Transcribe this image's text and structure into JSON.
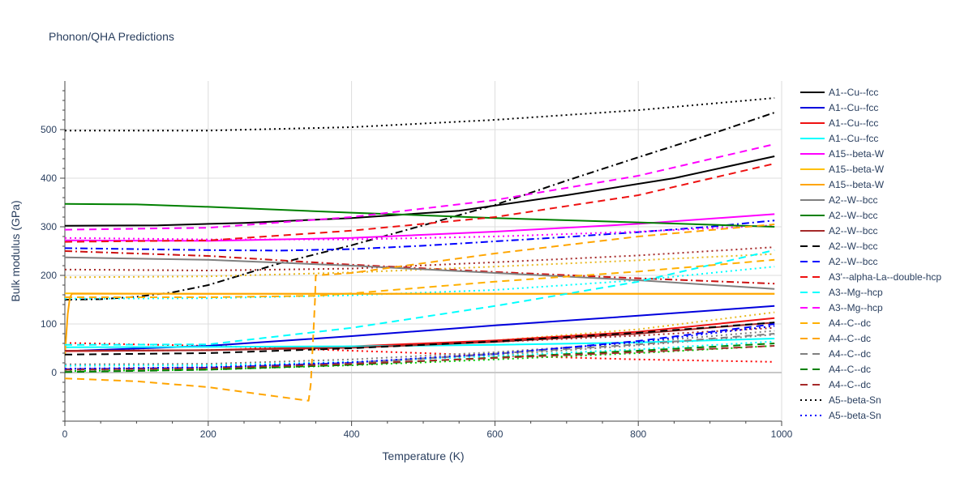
{
  "chart_data": {
    "type": "line",
    "title": "Phonon/QHA Predictions",
    "xlabel": "Temperature (K)",
    "ylabel": "Bulk modulus (GPa)",
    "xlim": [
      0,
      1000
    ],
    "ylim": [
      -100,
      600
    ],
    "x_ticks": [
      0,
      200,
      400,
      600,
      800,
      1000
    ],
    "y_ticks": [
      0,
      100,
      200,
      300,
      400,
      500
    ],
    "grid": true,
    "legend_position": "right",
    "series": [
      {
        "name": "A1--Cu--fcc",
        "color": "#000000",
        "dash": "solid",
        "x": [
          0,
          130,
          250,
          400,
          550,
          700,
          850,
          990
        ],
        "y": [
          302,
          303,
          308,
          318,
          333,
          365,
          400,
          445
        ]
      },
      {
        "name": "A1--Cu--fcc",
        "color": "#0000dd",
        "dash": "solid",
        "x": [
          0,
          200,
          400,
          600,
          800,
          990
        ],
        "y": [
          44,
          55,
          75,
          97,
          117,
          137
        ]
      },
      {
        "name": "A1--Cu--fcc",
        "color": "#ee1111",
        "dash": "solid",
        "x": [
          0,
          200,
          400,
          600,
          800,
          990
        ],
        "y": [
          44,
          46,
          54,
          66,
          84,
          112
        ]
      },
      {
        "name": "A1--Cu--fcc",
        "color": "#00ffff",
        "dash": "solid",
        "x": [
          0,
          200,
          400,
          600,
          800,
          990
        ],
        "y": [
          52,
          53,
          54,
          57,
          62,
          70
        ]
      },
      {
        "name": "A15--beta-W",
        "color": "#ff00ff",
        "dash": "solid",
        "x": [
          0,
          200,
          400,
          600,
          800,
          990
        ],
        "y": [
          272,
          271,
          277,
          290,
          306,
          326
        ]
      },
      {
        "name": "A15--beta-W",
        "color": "#ffc000",
        "dash": "solid",
        "x": [
          0,
          200,
          400,
          600,
          800,
          990
        ],
        "y": [
          163,
          162,
          162,
          162,
          162,
          162
        ]
      },
      {
        "name": "A15--beta-W",
        "color": "#ffa500",
        "dash": "solid",
        "x": [
          0,
          4,
          7,
          10,
          200,
          400,
          600,
          800,
          990
        ],
        "y": [
          35,
          120,
          155,
          162,
          162,
          162,
          162,
          162,
          162
        ]
      },
      {
        "name": "A2--W--bcc",
        "color": "#808080",
        "dash": "solid",
        "x": [
          0,
          200,
          400,
          600,
          800,
          990
        ],
        "y": [
          237,
          232,
          220,
          205,
          190,
          172
        ]
      },
      {
        "name": "A2--W--bcc",
        "color": "#008000",
        "dash": "solid",
        "x": [
          0,
          100,
          200,
          400,
          600,
          800,
          990
        ],
        "y": [
          347,
          346,
          341,
          329,
          318,
          309,
          300
        ]
      },
      {
        "name": "A2--W--bcc",
        "color": "#a52a2a",
        "dash": "solid",
        "x": [
          0,
          200,
          400,
          600,
          800,
          990
        ],
        "y": [
          45,
          46,
          51,
          63,
          80,
          103
        ]
      },
      {
        "name": "A2--W--bcc",
        "color": "#000000",
        "dash": "dash",
        "x": [
          0,
          200,
          400,
          600,
          800,
          990
        ],
        "y": [
          37,
          40,
          50,
          64,
          82,
          103
        ]
      },
      {
        "name": "A2--W--bcc",
        "color": "#0000ff",
        "dash": "dash",
        "x": [
          0,
          200,
          400,
          600,
          800,
          990
        ],
        "y": [
          7,
          10,
          20,
          38,
          65,
          100
        ]
      },
      {
        "name": "A3'--alpha-La--double-hcp",
        "color": "#ee1111",
        "dash": "dash",
        "x": [
          0,
          200,
          400,
          600,
          800,
          990
        ],
        "y": [
          269,
          272,
          292,
          320,
          365,
          430
        ]
      },
      {
        "name": "A3--Mg--hcp",
        "color": "#00ffff",
        "dash": "dash",
        "x": [
          0,
          200,
          400,
          600,
          800,
          990
        ],
        "y": [
          57,
          58,
          92,
          137,
          187,
          252
        ]
      },
      {
        "name": "A3--Mg--hcp",
        "color": "#ff00ff",
        "dash": "dash",
        "x": [
          0,
          200,
          400,
          600,
          800,
          990
        ],
        "y": [
          294,
          298,
          320,
          355,
          405,
          470
        ]
      },
      {
        "name": "A4--C--dc",
        "color": "#ffb000",
        "dash": "dash",
        "x": [
          0,
          200,
          350,
          400,
          600,
          800,
          990
        ],
        "y": [
          155,
          155,
          158,
          163,
          187,
          208,
          232
        ]
      },
      {
        "name": "A4--C--dc",
        "color": "#ffa500",
        "dash": "dash",
        "x": [
          0,
          100,
          200,
          300,
          340,
          343,
          346,
          349,
          350,
          400,
          600,
          800,
          990
        ],
        "y": [
          -12,
          -18,
          -30,
          -50,
          -58,
          -25,
          60,
          150,
          200,
          205,
          245,
          280,
          305
        ]
      },
      {
        "name": "A4--C--dc",
        "color": "#808080",
        "dash": "dash",
        "x": [
          0,
          200,
          400,
          600,
          800,
          990
        ],
        "y": [
          2,
          6,
          19,
          39,
          58,
          80
        ]
      },
      {
        "name": "A4--C--dc",
        "color": "#008000",
        "dash": "dash",
        "x": [
          0,
          200,
          400,
          600,
          800,
          990
        ],
        "y": [
          1,
          6,
          16,
          31,
          45,
          60
        ]
      },
      {
        "name": "A4--C--dc",
        "color": "#a52a2a",
        "dash": "dash",
        "x": [
          0,
          200,
          400,
          600,
          800,
          990
        ],
        "y": [
          6,
          9,
          18,
          30,
          42,
          55
        ]
      },
      {
        "name": "A5--beta-Sn",
        "color": "#000000",
        "dash": "dot",
        "x": [
          0,
          200,
          400,
          600,
          800,
          990
        ],
        "y": [
          498,
          498,
          505,
          520,
          540,
          565
        ]
      },
      {
        "name": "A5--beta-Sn",
        "color": "#0000ff",
        "dash": "dot",
        "x": [
          0,
          200,
          400,
          600,
          800,
          990
        ],
        "y": [
          8,
          11,
          21,
          39,
          63,
          96
        ]
      }
    ],
    "extra_traces": [
      {
        "color": "#000000",
        "dash": "dashdot",
        "x": [
          0,
          50,
          100,
          150,
          200,
          300,
          400,
          500,
          600,
          700,
          800,
          900,
          990
        ],
        "y": [
          150,
          151,
          156,
          165,
          180,
          225,
          262,
          303,
          345,
          395,
          443,
          490,
          535
        ]
      },
      {
        "color": "#0000ff",
        "dash": "dashdot",
        "x": [
          0,
          200,
          300,
          400,
          500,
          600,
          700,
          800,
          900,
          990
        ],
        "y": [
          256,
          252,
          251,
          254,
          261,
          270,
          279,
          289,
          300,
          313
        ]
      },
      {
        "color": "#cc1111",
        "dash": "dashdot",
        "x": [
          0,
          200,
          400,
          600,
          800,
          990
        ],
        "y": [
          250,
          240,
          222,
          207,
          194,
          183
        ]
      },
      {
        "color": "#00ffff",
        "dash": "dot",
        "x": [
          0,
          200,
          400,
          600,
          800,
          990
        ],
        "y": [
          152,
          153,
          159,
          170,
          190,
          218
        ]
      },
      {
        "color": "#ff00ff",
        "dash": "dot",
        "x": [
          0,
          200,
          400,
          600,
          800,
          990
        ],
        "y": [
          277,
          274,
          274,
          280,
          290,
          303
        ]
      },
      {
        "color": "#a52a2a",
        "dash": "dot",
        "x": [
          0,
          200,
          400,
          600,
          800,
          990
        ],
        "y": [
          212,
          210,
          214,
          227,
          241,
          258
        ]
      },
      {
        "color": "#e8b820",
        "dash": "dot",
        "x": [
          0,
          200,
          400,
          600,
          800,
          990
        ],
        "y": [
          196,
          198,
          206,
          218,
          231,
          244
        ]
      },
      {
        "color": "#e8b820",
        "dash": "dot",
        "x": [
          0,
          200,
          400,
          600,
          800,
          990
        ],
        "y": [
          45,
          46,
          52,
          66,
          89,
          124
        ]
      },
      {
        "color": "#ff0000",
        "dash": "dot",
        "x": [
          0,
          200,
          400,
          600,
          800,
          990
        ],
        "y": [
          61,
          55,
          45,
          35,
          27,
          22
        ]
      },
      {
        "color": "#a52a2a",
        "dash": "dot",
        "x": [
          0,
          200,
          400,
          600,
          800,
          990
        ],
        "y": [
          45,
          46,
          53,
          63,
          76,
          92
        ]
      },
      {
        "color": "#808080",
        "dash": "dot",
        "x": [
          0,
          200,
          400,
          600,
          800,
          990
        ],
        "y": [
          17,
          18,
          27,
          42,
          62,
          86
        ]
      },
      {
        "color": "#808080",
        "dash": "dot",
        "x": [
          0,
          200,
          400,
          600,
          800,
          990
        ],
        "y": [
          4,
          8,
          20,
          36,
          56,
          78
        ]
      },
      {
        "color": "#00ffff",
        "dash": "dot",
        "x": [
          0,
          200,
          400,
          600,
          800,
          990
        ],
        "y": [
          14,
          15,
          22,
          34,
          48,
          64
        ]
      },
      {
        "color": "#00cc00",
        "dash": "dot",
        "x": [
          0,
          200,
          400,
          600,
          800,
          990
        ],
        "y": [
          3,
          6,
          15,
          27,
          40,
          55
        ]
      }
    ]
  }
}
